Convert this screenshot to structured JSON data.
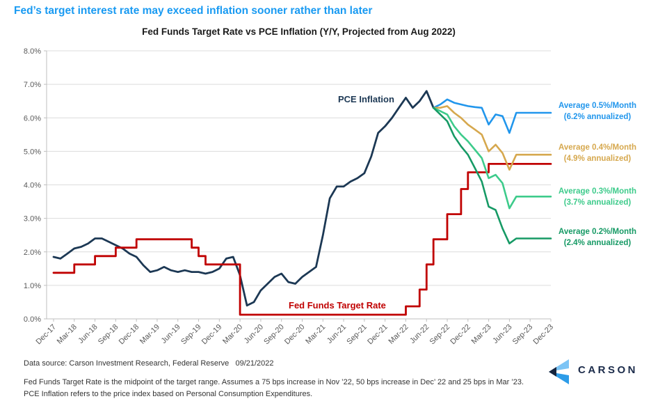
{
  "header": {
    "title": "Fed’s target interest rate may exceed inflation sooner rather than later"
  },
  "colors": {
    "title_blue": "#189AF2",
    "navy": "#1C3854",
    "red": "#C00000",
    "blue": "#2196EC",
    "gold": "#D6A84E",
    "light_green": "#3DCB8B",
    "dark_green": "#169A65",
    "axis_text": "#595959",
    "gridline": "#DCDCDC",
    "axis_line": "#BFBFBF",
    "logo_navy": "#1B2B4A"
  },
  "chart_data": {
    "type": "line",
    "title": "Fed Funds Target Rate vs PCE Inflation (Y/Y, Projected from Aug 2022)",
    "xlabel": "",
    "ylabel": "",
    "ylim": [
      0,
      8
    ],
    "y_tick_labels": [
      "0.0%",
      "1.0%",
      "2.0%",
      "3.0%",
      "4.0%",
      "5.0%",
      "6.0%",
      "7.0%",
      "8.0%"
    ],
    "grid": "horizontal",
    "x_months_span": 72,
    "x_tick_labels": [
      "Dec-17",
      "Mar-18",
      "Jun-18",
      "Sep-18",
      "Dec-18",
      "Mar-19",
      "Jun-19",
      "Sep-19",
      "Dec-19",
      "Mar-20",
      "Jun-20",
      "Sep-20",
      "Dec-20",
      "Mar-21",
      "Jun-21",
      "Sep-21",
      "Dec-21",
      "Mar-22",
      "Jun-22",
      "Sep-22",
      "Dec-22",
      "Mar-23",
      "Jun-23",
      "Sep-23",
      "Dec-23"
    ],
    "series": [
      {
        "name": "PCE Inflation",
        "color": "#1C3854",
        "width": 2.8,
        "x_start_month": 0,
        "values": [
          1.85,
          1.8,
          1.95,
          2.1,
          2.15,
          2.25,
          2.4,
          2.4,
          2.3,
          2.2,
          2.1,
          1.95,
          1.85,
          1.6,
          1.4,
          1.45,
          1.55,
          1.45,
          1.4,
          1.45,
          1.4,
          1.4,
          1.35,
          1.4,
          1.5,
          1.8,
          1.85,
          1.3,
          0.4,
          0.5,
          0.85,
          1.05,
          1.25,
          1.35,
          1.1,
          1.05,
          1.25,
          1.4,
          1.55,
          2.5,
          3.6,
          3.95,
          3.95,
          4.1,
          4.2,
          4.35,
          4.85,
          5.55,
          5.75,
          6.0,
          6.3,
          6.6,
          6.3,
          6.5,
          6.8,
          6.3
        ]
      },
      {
        "name": "Fed Funds Target Rate",
        "color": "#C00000",
        "width": 2.8,
        "type": "step",
        "points": [
          [
            0,
            1.375
          ],
          [
            3,
            1.625
          ],
          [
            6,
            1.875
          ],
          [
            9,
            2.125
          ],
          [
            12,
            2.375
          ],
          [
            20,
            2.125
          ],
          [
            21,
            1.875
          ],
          [
            22,
            1.625
          ],
          [
            27,
            0.125
          ],
          [
            51,
            0.375
          ],
          [
            53,
            0.875
          ],
          [
            54,
            1.625
          ],
          [
            55,
            2.375
          ],
          [
            57,
            3.125
          ],
          [
            59,
            3.875
          ],
          [
            60,
            4.375
          ],
          [
            63,
            4.625
          ]
        ],
        "x_end_month": 72
      },
      {
        "name": "Average 0.5%/Month (6.2% annualized)",
        "color": "#2196EC",
        "width": 2.6,
        "x_start_month": 55,
        "values": [
          6.3,
          6.4,
          6.55,
          6.45,
          6.4,
          6.35,
          6.32,
          6.3,
          5.8,
          6.1,
          6.05,
          5.55,
          6.15,
          6.15,
          6.15,
          6.15,
          6.15,
          6.15
        ]
      },
      {
        "name": "Average 0.4%/Month (4.9% annualized)",
        "color": "#D6A84E",
        "width": 2.6,
        "x_start_month": 55,
        "values": [
          6.3,
          6.3,
          6.35,
          6.15,
          6.0,
          5.8,
          5.65,
          5.5,
          5.0,
          5.2,
          4.95,
          4.45,
          4.9,
          4.9,
          4.9,
          4.9,
          4.9,
          4.9
        ]
      },
      {
        "name": "Average 0.3%/Month (3.7% annualized)",
        "color": "#3DCB8B",
        "width": 2.6,
        "x_start_month": 55,
        "values": [
          6.3,
          6.2,
          6.1,
          5.75,
          5.5,
          5.3,
          5.05,
          4.8,
          4.2,
          4.3,
          4.05,
          3.3,
          3.65,
          3.65,
          3.65,
          3.65,
          3.65,
          3.65
        ]
      },
      {
        "name": "Average 0.2%/Month (2.4% annualized)",
        "color": "#169A65",
        "width": 2.6,
        "x_start_month": 55,
        "values": [
          6.3,
          6.1,
          5.9,
          5.45,
          5.15,
          4.9,
          4.5,
          4.1,
          3.35,
          3.25,
          2.7,
          2.25,
          2.4,
          2.4,
          2.4,
          2.4,
          2.4,
          2.4
        ]
      }
    ]
  },
  "line_labels": {
    "pce": "PCE Inflation",
    "ffr": "Fed Funds Target Rate"
  },
  "annotations": [
    {
      "line1": "Average 0.5%/Month",
      "line2": "(6.2% annualized)",
      "color": "#2196EC"
    },
    {
      "line1": "Average 0.4%/Month",
      "line2": "(4.9% annualized)",
      "color": "#D6A84E"
    },
    {
      "line1": "Average 0.3%/Month",
      "line2": "(3.7% annualized)",
      "color": "#3DCB8B"
    },
    {
      "line1": "Average 0.2%/Month",
      "line2": "(2.4% annualized)",
      "color": "#169A65"
    }
  ],
  "footer": {
    "source": "Data source: Carson Investment Research, Federal Reserve   09/21/2022",
    "note1": "Fed Funds Target Rate is the midpoint of the target range. Assumes a 75 bps increase in Nov ’22, 50 bps increase in Dec’ 22 and 25 bps in Mar ’23.",
    "note2": "PCE Inflation refers to the price index based on Personal Consumption Expenditures.",
    "logo_text": "CARSON",
    "logo_colors": {
      "top": "#7CC4F5",
      "left": "#16243D",
      "bottom": "#2D9CE8"
    }
  }
}
